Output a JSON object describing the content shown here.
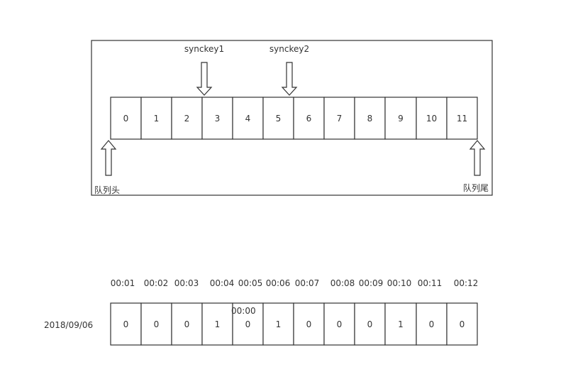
{
  "queue": {
    "cells": [
      "0",
      "1",
      "2",
      "3",
      "4",
      "5",
      "6",
      "7",
      "8",
      "9",
      "10",
      "11"
    ],
    "pointers": [
      {
        "label": "synckey1",
        "index": 3
      },
      {
        "label": "synckey2",
        "index": 5
      }
    ],
    "head_label": "队列头",
    "tail_label": "队列尾"
  },
  "timeline": {
    "date_label": "2018/09/06",
    "times": [
      "00:01",
      "00:02",
      "00:03",
      "00:04",
      "00:05",
      "00:06",
      "00:07",
      "00:08",
      "00:09",
      "00:10",
      "00:11",
      "00:12"
    ],
    "bits": [
      "0",
      "0",
      "0",
      "1",
      "0",
      "1",
      "0",
      "0",
      "0",
      "1",
      "0",
      "0"
    ],
    "overlay_label": "00:00"
  },
  "colors": {
    "stroke": "#333333",
    "background": "#ffffff"
  }
}
